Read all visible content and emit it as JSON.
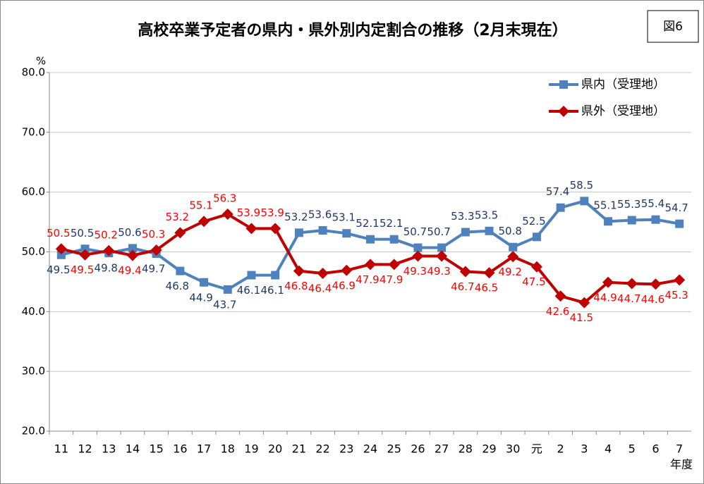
{
  "chart_data": {
    "type": "line",
    "title": "高校卒業予定者の県内・県外別内定割合の推移（2月末現在）",
    "figure_label": "図6",
    "y_unit": "%",
    "x_label": "年度",
    "categories": [
      "11",
      "12",
      "13",
      "14",
      "15",
      "16",
      "17",
      "18",
      "19",
      "20",
      "21",
      "22",
      "23",
      "24",
      "25",
      "26",
      "27",
      "28",
      "29",
      "30",
      "元",
      "2",
      "3",
      "4",
      "5",
      "6",
      "7"
    ],
    "series": [
      {
        "name": "県内（受理地）",
        "color": "#4f81bd",
        "label_color": "#1f3864",
        "marker": "square",
        "values": [
          49.5,
          50.5,
          49.8,
          50.6,
          49.7,
          46.8,
          44.9,
          43.7,
          46.1,
          46.1,
          53.2,
          53.6,
          53.1,
          52.1,
          52.1,
          50.7,
          50.7,
          53.3,
          53.5,
          50.8,
          52.5,
          57.4,
          58.5,
          55.1,
          55.3,
          55.4,
          54.7
        ]
      },
      {
        "name": "県外（受理地）",
        "color": "#c00000",
        "label_color": "#ff0000",
        "marker": "diamond",
        "values": [
          50.5,
          49.5,
          50.2,
          49.4,
          50.3,
          53.2,
          55.1,
          56.3,
          53.9,
          53.9,
          46.8,
          46.4,
          46.9,
          47.9,
          47.9,
          49.3,
          49.3,
          46.7,
          46.5,
          49.2,
          47.5,
          42.6,
          41.5,
          44.9,
          44.7,
          44.6,
          45.3
        ]
      }
    ],
    "ylim": [
      20,
      80
    ],
    "yticks": [
      {
        "value": 20,
        "label": "20.0"
      },
      {
        "value": 30,
        "label": "30.0"
      },
      {
        "value": 40,
        "label": "40.0"
      },
      {
        "value": 50,
        "label": "50.0"
      },
      {
        "value": 60,
        "label": "60.0"
      },
      {
        "value": 70,
        "label": "70.0"
      },
      {
        "value": 80,
        "label": "80.0"
      }
    ],
    "grid": true,
    "legend": "upper right"
  }
}
